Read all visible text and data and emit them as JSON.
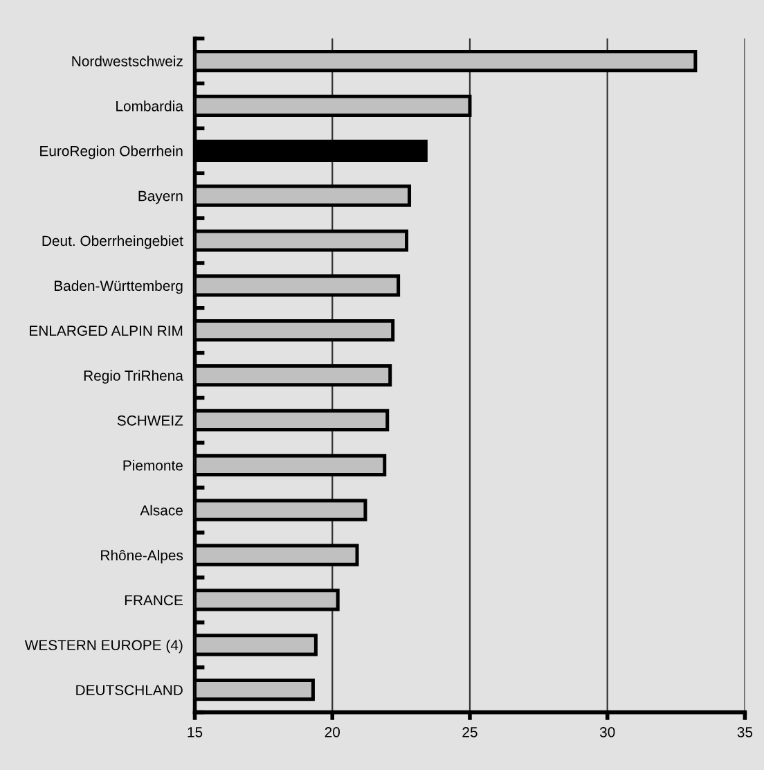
{
  "chart_data": {
    "type": "bar",
    "orientation": "horizontal",
    "categories": [
      "Nordwestschweiz",
      "Lombardia",
      "EuroRegion Oberrhein",
      "Bayern",
      "Deut. Oberrheingebiet",
      "Baden-Württemberg",
      "ENLARGED ALPIN RIM",
      "Regio TriRhena",
      "SCHWEIZ",
      "Piemonte",
      "Alsace",
      "Rhône-Alpes",
      "FRANCE",
      "WESTERN EUROPE (4)",
      "DEUTSCHLAND"
    ],
    "values": [
      33.2,
      25.0,
      23.4,
      22.8,
      22.7,
      22.4,
      22.2,
      22.1,
      22.0,
      21.9,
      21.2,
      20.9,
      20.2,
      19.4,
      19.3
    ],
    "colors": [
      "#c0c0c0",
      "#c0c0c0",
      "#000000",
      "#c0c0c0",
      "#c0c0c0",
      "#c0c0c0",
      "#c0c0c0",
      "#c0c0c0",
      "#c0c0c0",
      "#c0c0c0",
      "#c0c0c0",
      "#c0c0c0",
      "#c0c0c0",
      "#c0c0c0",
      "#c0c0c0"
    ],
    "xlim": [
      15,
      35
    ],
    "xticks": [
      15,
      20,
      25,
      30,
      35
    ],
    "grid": "x",
    "legend": false
  }
}
